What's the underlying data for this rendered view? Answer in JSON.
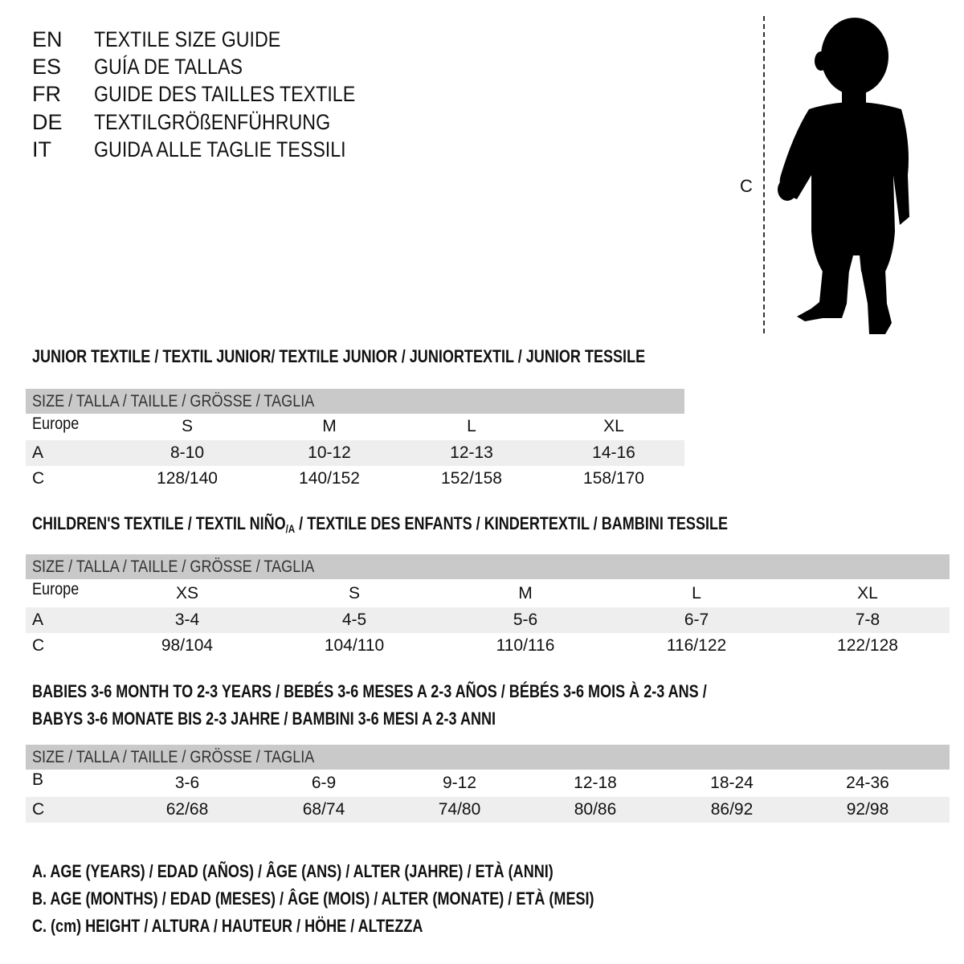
{
  "titles": [
    {
      "code": "EN",
      "text": "TEXTILE SIZE GUIDE"
    },
    {
      "code": "ES",
      "text": "GUÍA DE TALLAS"
    },
    {
      "code": "FR",
      "text": "GUIDE DES TAILLES TEXTILE"
    },
    {
      "code": "DE",
      "text": "TEXTILGRÖßENFÜHRUNG"
    },
    {
      "code": "IT",
      "text": "GUIDA ALLE TAGLIE TESSILI"
    }
  ],
  "figure": {
    "height_label": "C",
    "icon": "child-silhouette-icon"
  },
  "junior": {
    "heading": "JUNIOR TEXTILE / TEXTIL JUNIOR/ TEXTILE JUNIOR / JUNIORTEXTIL / JUNIOR TESSILE",
    "header": "SIZE / TALLA / TAILLE / GRÖSSE / TAGLIA",
    "rows": [
      {
        "label": "Europe",
        "values": [
          "S",
          "M",
          "L",
          "XL"
        ]
      },
      {
        "label": "A",
        "values": [
          "8-10",
          "10-12",
          "12-13",
          "14-16"
        ]
      },
      {
        "label": "C",
        "values": [
          "128/140",
          "140/152",
          "152/158",
          "158/170"
        ]
      }
    ]
  },
  "children": {
    "heading_pre": "CHILDREN'S TEXTILE / TEXTIL NIÑO",
    "heading_sub": "/A",
    "heading_post": " / TEXTILE DES ENFANTS / KINDERTEXTIL / BAMBINI TESSILE",
    "header": "SIZE / TALLA / TAILLE / GRÖSSE / TAGLIA",
    "rows": [
      {
        "label": "Europe",
        "values": [
          "XS",
          "S",
          "M",
          "L",
          "XL"
        ]
      },
      {
        "label": "A",
        "values": [
          "3-4",
          "4-5",
          "5-6",
          "6-7",
          "7-8"
        ]
      },
      {
        "label": "C",
        "values": [
          "98/104",
          "104/110",
          "110/116",
          "116/122",
          "122/128"
        ]
      }
    ]
  },
  "babies": {
    "heading_line1": "BABIES 3-6 MONTH TO 2-3 YEARS / BEBÉS 3-6 MESES A 2-3 AÑOS / BÉBÉS 3-6 MOIS À 2-3 ANS /",
    "heading_line2": "BABYS 3-6 MONATE BIS 2-3 JAHRE / BAMBINI 3-6 MESI A 2-3 ANNI",
    "header": "SIZE / TALLA / TAILLE / GRÖSSE / TAGLIA",
    "rows": [
      {
        "label": "B",
        "values": [
          "3-6",
          "6-9",
          "9-12",
          "12-18",
          "18-24",
          "24-36"
        ]
      },
      {
        "label": "C",
        "values": [
          "62/68",
          "68/74",
          "74/80",
          "80/86",
          "86/92",
          "92/98"
        ]
      }
    ]
  },
  "legend": [
    "A. AGE (YEARS) / EDAD (AÑOS) / ÂGE (ANS) / ALTER (JAHRE) / ETÀ (ANNI)",
    "B. AGE (MONTHS) / EDAD (MESES) / ÂGE (MOIS) / ALTER (MONATE) / ETÀ (MESI)",
    "C. (cm) HEIGHT / ALTURA / HAUTEUR / HÖHE / ALTEZZA"
  ],
  "colors": {
    "header_row": "#c9c9c9",
    "alt_row": "#eeeeee",
    "text": "#111111"
  }
}
